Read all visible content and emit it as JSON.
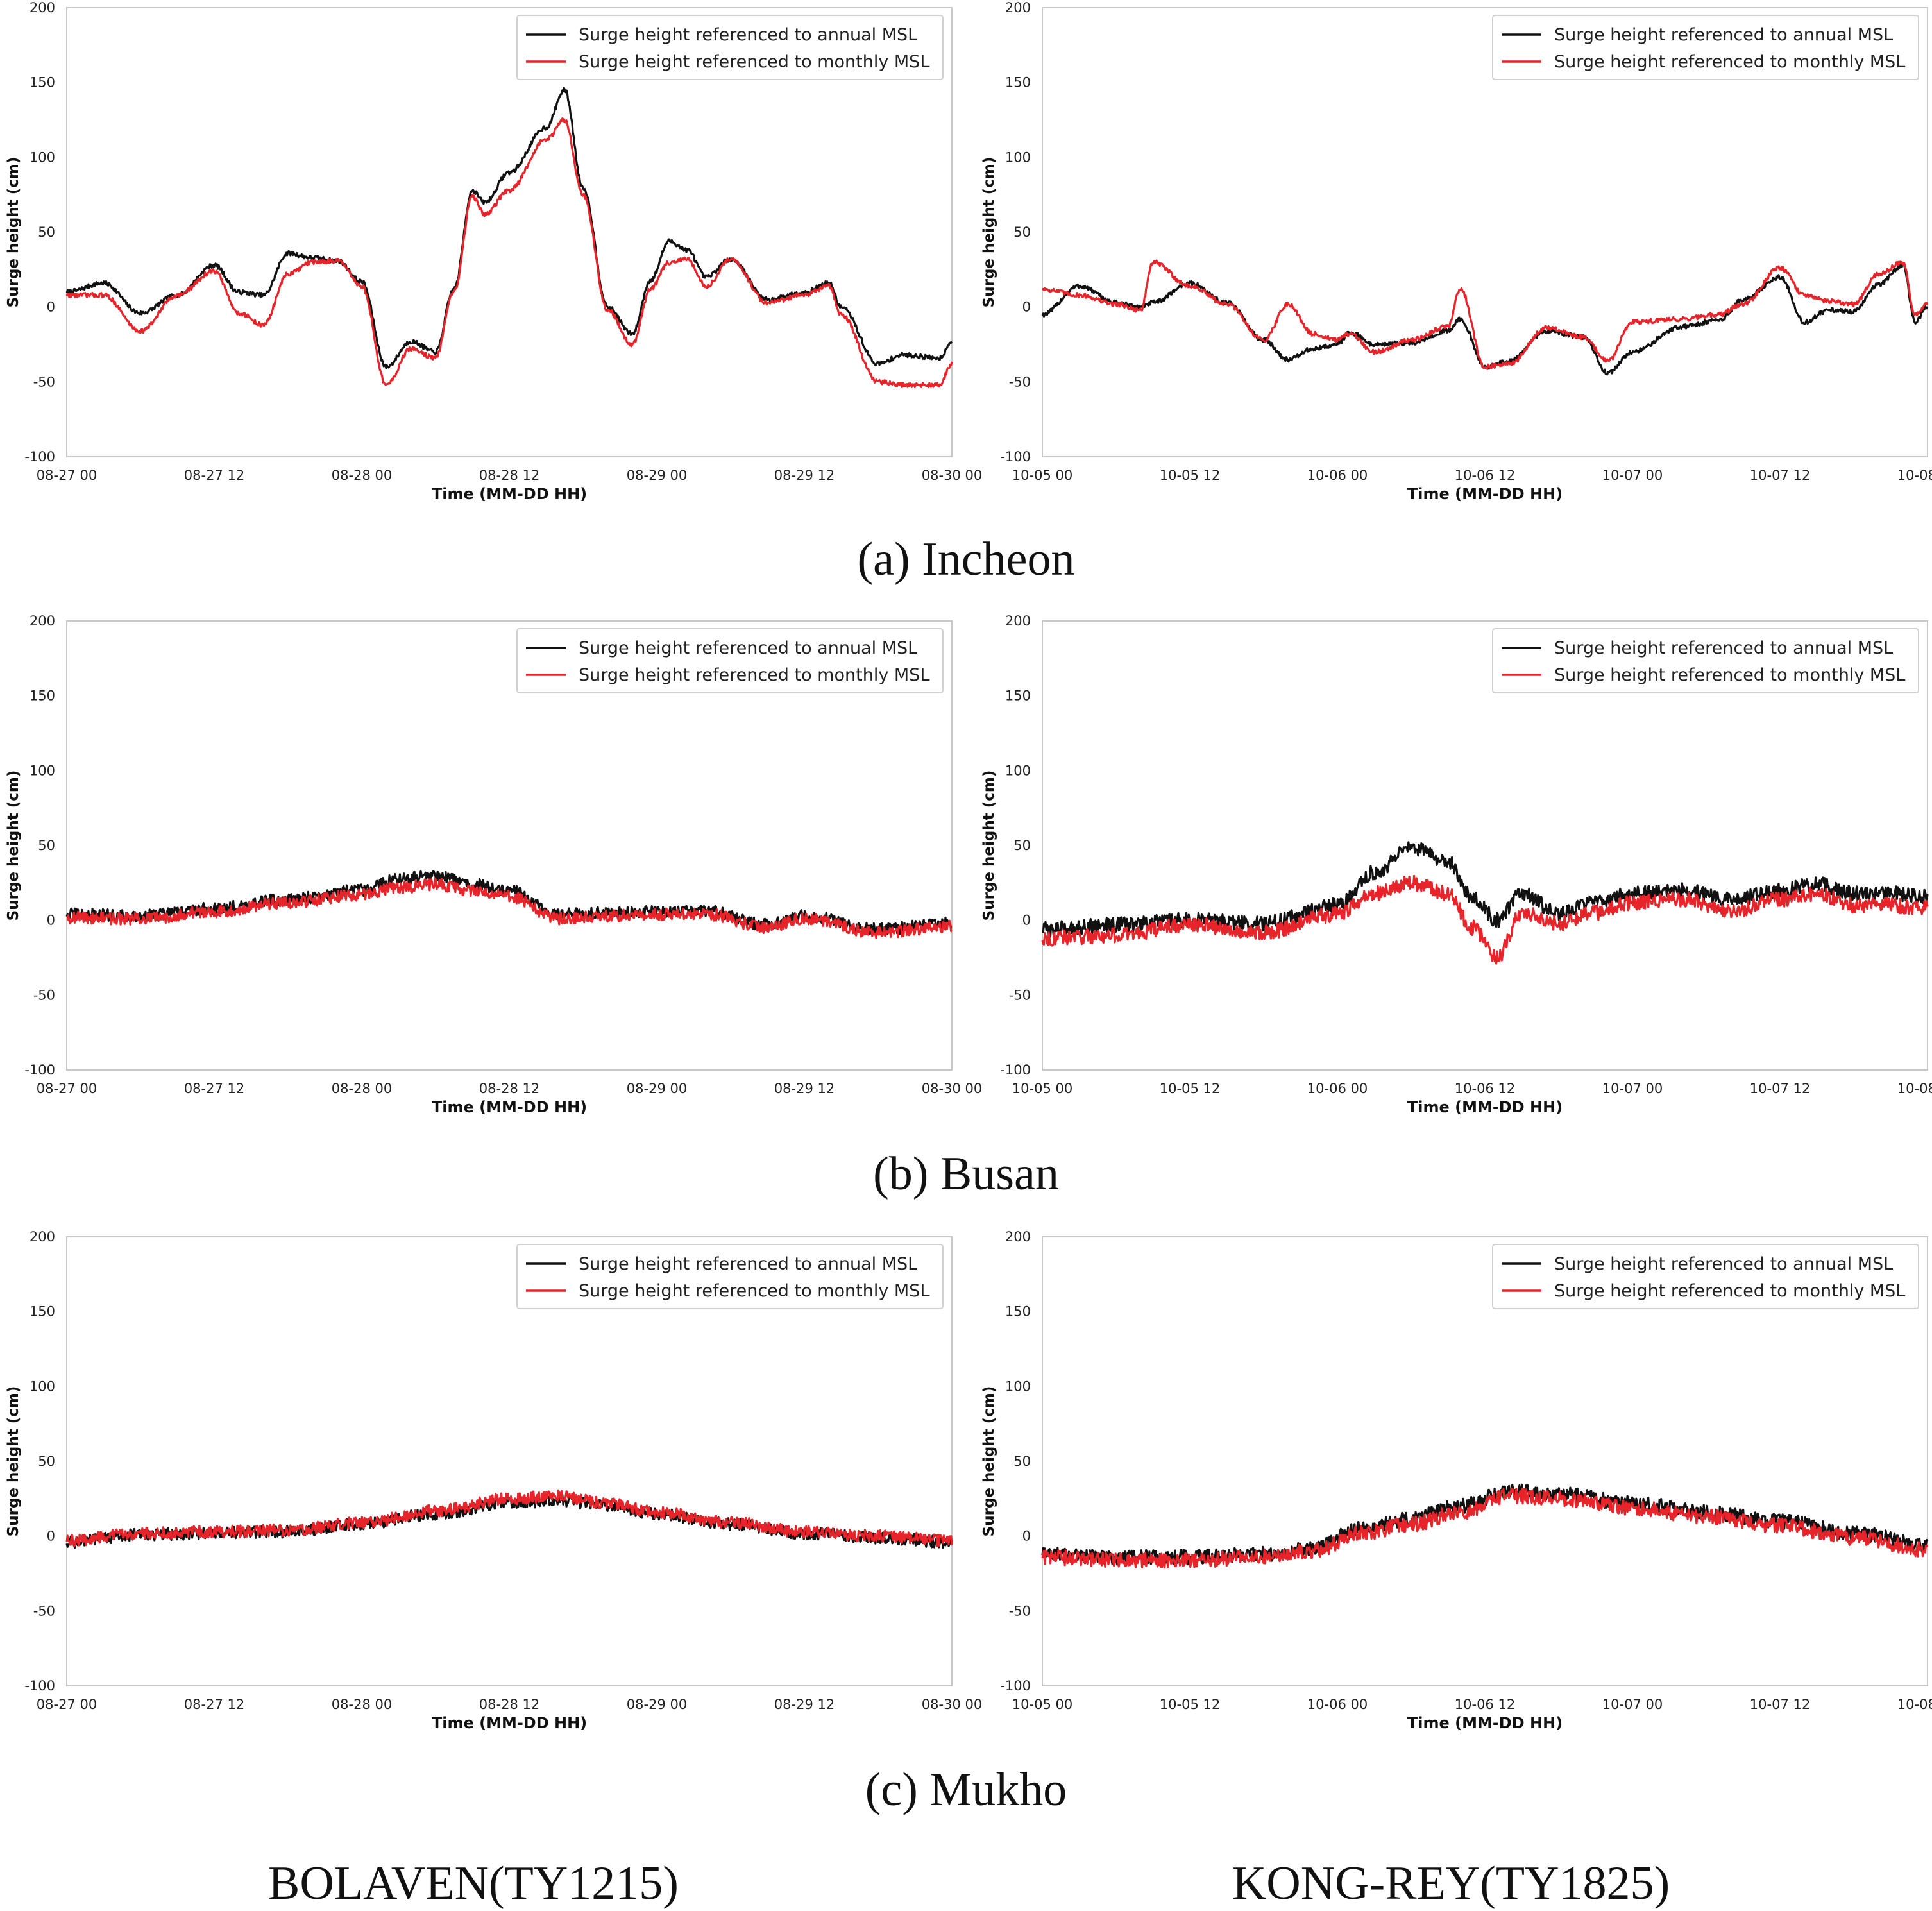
{
  "figure": {
    "row_captions": [
      "(a)  Incheon",
      "(b)  Busan",
      "(c)  Mukho"
    ],
    "column_labels": [
      "BOLAVEN(TY1215)",
      "KONG-REY(TY1825)"
    ]
  },
  "chart_data": [
    {
      "id": "incheon-bolaven",
      "type": "line",
      "xlabel": "Time (MM-DD HH)",
      "ylabel": "Surge height (cm)",
      "xlim": [
        0,
        72
      ],
      "ylim": [
        -100,
        200
      ],
      "xticks": [
        0,
        12,
        24,
        36,
        48,
        60,
        72
      ],
      "xticklabels": [
        "08-27 00",
        "08-27 12",
        "08-28 00",
        "08-28 12",
        "08-29 00",
        "08-29 12",
        "08-30 00"
      ],
      "yticks": [
        -100,
        -50,
        0,
        50,
        100,
        150,
        200
      ],
      "legend_position": "top-right",
      "grid": false,
      "noise_amplitude": 1.5,
      "series": [
        {
          "name": "Surge height referenced to annual MSL",
          "color": "#111111",
          "x": [
            0,
            3,
            6,
            9,
            12,
            14,
            16,
            18,
            20,
            22,
            24,
            26,
            28,
            30,
            31.5,
            33,
            34,
            36,
            39,
            40.5,
            42,
            44,
            46,
            47.5,
            49,
            50.5,
            52,
            54,
            57,
            60,
            62,
            63,
            66,
            68,
            71,
            72
          ],
          "y": [
            10,
            16,
            -4,
            8,
            28,
            10,
            8,
            36,
            33,
            31,
            17,
            -40,
            -23,
            -30,
            12,
            78,
            70,
            90,
            120,
            145,
            80,
            0,
            -18,
            18,
            44,
            38,
            20,
            32,
            5,
            10,
            16,
            0,
            -38,
            -32,
            -34,
            -23
          ]
        },
        {
          "name": "Surge height referenced to monthly MSL",
          "color": "#e8242b",
          "x": [
            0,
            3,
            6,
            9,
            12,
            14,
            16,
            18,
            20,
            22,
            24,
            26,
            28,
            30,
            31.5,
            33,
            34,
            36,
            39,
            40.5,
            42,
            44,
            46,
            47.5,
            49,
            50.5,
            52,
            54,
            57,
            60,
            62,
            63,
            66,
            68,
            71,
            72
          ],
          "y": [
            8,
            8,
            -16,
            8,
            24,
            -4,
            -12,
            22,
            30,
            31,
            14,
            -52,
            -28,
            -34,
            10,
            74,
            62,
            78,
            112,
            125,
            75,
            -2,
            -25,
            12,
            30,
            32,
            14,
            32,
            3,
            8,
            14,
            -5,
            -50,
            -52,
            -52,
            -38
          ]
        }
      ]
    },
    {
      "id": "incheon-kongrey",
      "type": "line",
      "xlabel": "Time (MM-DD HH)",
      "ylabel": "Surge height (cm)",
      "xlim": [
        0,
        72
      ],
      "ylim": [
        -100,
        200
      ],
      "xticks": [
        0,
        12,
        24,
        36,
        48,
        60,
        72
      ],
      "xticklabels": [
        "10-05 00",
        "10-05 12",
        "10-06 00",
        "10-06 12",
        "10-07 00",
        "10-07 12",
        "10-08 00"
      ],
      "yticks": [
        -100,
        -50,
        0,
        50,
        100,
        150,
        200
      ],
      "legend_position": "top-right",
      "grid": false,
      "noise_amplitude": 1.5,
      "series": [
        {
          "name": "Surge height referenced to annual MSL",
          "color": "#111111",
          "x": [
            0,
            3,
            6,
            8,
            9,
            12,
            15,
            18,
            20,
            22,
            24,
            25,
            27,
            30,
            33,
            34,
            36,
            38,
            41,
            44,
            46,
            48,
            52,
            55,
            57,
            60,
            62,
            64,
            66,
            68,
            70,
            71,
            72
          ],
          "y": [
            -5,
            14,
            3,
            0,
            3,
            16,
            3,
            -22,
            -35,
            -28,
            -25,
            -17,
            -25,
            -24,
            -16,
            -8,
            -40,
            -36,
            -16,
            -20,
            -44,
            -30,
            -13,
            -9,
            5,
            20,
            -10,
            -2,
            -3,
            15,
            28,
            -10,
            0
          ]
        },
        {
          "name": "Surge height referenced to monthly MSL",
          "color": "#e8242b",
          "x": [
            0,
            3,
            6,
            8,
            9,
            12,
            15,
            18,
            20,
            22,
            24,
            25,
            27,
            30,
            33,
            34,
            36,
            38,
            41,
            44,
            46,
            48,
            52,
            55,
            57,
            60,
            62,
            64,
            66,
            68,
            70,
            71,
            72
          ],
          "y": [
            12,
            8,
            2,
            -2,
            30,
            14,
            2,
            -22,
            2,
            -18,
            -22,
            -18,
            -30,
            -22,
            -13,
            12,
            -40,
            -38,
            -14,
            -20,
            -36,
            -10,
            -8,
            -5,
            2,
            26,
            8,
            4,
            2,
            22,
            30,
            -5,
            3
          ]
        }
      ]
    },
    {
      "id": "busan-bolaven",
      "type": "line",
      "xlabel": "Time (MM-DD HH)",
      "ylabel": "Surge height (cm)",
      "xlim": [
        0,
        72
      ],
      "ylim": [
        -100,
        200
      ],
      "xticks": [
        0,
        12,
        24,
        36,
        48,
        60,
        72
      ],
      "xticklabels": [
        "08-27 00",
        "08-27 12",
        "08-28 00",
        "08-28 12",
        "08-29 00",
        "08-29 12",
        "08-30 00"
      ],
      "yticks": [
        -100,
        -50,
        0,
        50,
        100,
        150,
        200
      ],
      "legend_position": "top-right",
      "grid": false,
      "noise_amplitude": 4,
      "series": [
        {
          "name": "Surge height referenced to annual MSL",
          "color": "#111111",
          "x": [
            0,
            6,
            12,
            18,
            24,
            27,
            30,
            33,
            36,
            40,
            44,
            48,
            52,
            57,
            60,
            66,
            72
          ],
          "y": [
            4,
            3,
            8,
            14,
            20,
            28,
            30,
            24,
            20,
            4,
            5,
            6,
            6,
            -3,
            3,
            -6,
            -2
          ]
        },
        {
          "name": "Surge height referenced to monthly MSL",
          "color": "#e8242b",
          "x": [
            0,
            6,
            12,
            18,
            24,
            27,
            30,
            33,
            36,
            40,
            44,
            48,
            52,
            57,
            60,
            66,
            72
          ],
          "y": [
            2,
            1,
            6,
            12,
            17,
            22,
            24,
            20,
            16,
            1,
            3,
            4,
            4,
            -5,
            1,
            -8,
            -4
          ]
        }
      ]
    },
    {
      "id": "busan-kongrey",
      "type": "line",
      "xlabel": "Time (MM-DD HH)",
      "ylabel": "Surge height (cm)",
      "xlim": [
        0,
        72
      ],
      "ylim": [
        -100,
        200
      ],
      "xticks": [
        0,
        12,
        24,
        36,
        48,
        60,
        72
      ],
      "xticklabels": [
        "10-05 00",
        "10-05 12",
        "10-06 00",
        "10-06 12",
        "10-07 00",
        "10-07 12",
        "10-08 00"
      ],
      "yticks": [
        -100,
        -50,
        0,
        50,
        100,
        150,
        200
      ],
      "legend_position": "top-right",
      "grid": false,
      "noise_amplitude": 5,
      "series": [
        {
          "name": "Surge height referenced to annual MSL",
          "color": "#111111",
          "x": [
            0,
            6,
            12,
            18,
            24,
            27,
            30,
            33,
            35,
            37,
            39,
            42,
            45,
            48,
            52,
            56,
            60,
            63,
            66,
            69,
            72
          ],
          "y": [
            -6,
            -3,
            0,
            -2,
            10,
            32,
            48,
            40,
            15,
            0,
            18,
            5,
            12,
            18,
            20,
            14,
            20,
            24,
            18,
            18,
            16
          ]
        },
        {
          "name": "Surge height referenced to monthly MSL",
          "color": "#e8242b",
          "x": [
            0,
            6,
            12,
            18,
            24,
            27,
            30,
            33,
            35,
            37,
            39,
            42,
            45,
            48,
            52,
            56,
            60,
            63,
            66,
            69,
            72
          ],
          "y": [
            -12,
            -10,
            -3,
            -8,
            4,
            18,
            25,
            18,
            -5,
            -25,
            5,
            -2,
            5,
            12,
            14,
            6,
            14,
            18,
            10,
            10,
            8
          ]
        }
      ]
    },
    {
      "id": "mukho-bolaven",
      "type": "line",
      "xlabel": "Time (MM-DD HH)",
      "ylabel": "Surge height (cm)",
      "xlim": [
        0,
        72
      ],
      "ylim": [
        -100,
        200
      ],
      "xticks": [
        0,
        12,
        24,
        36,
        48,
        60,
        72
      ],
      "xticklabels": [
        "08-27 00",
        "08-27 12",
        "08-28 00",
        "08-28 12",
        "08-29 00",
        "08-29 12",
        "08-30 00"
      ],
      "yticks": [
        -100,
        -50,
        0,
        50,
        100,
        150,
        200
      ],
      "legend_position": "top-right",
      "grid": false,
      "noise_amplitude": 4,
      "series": [
        {
          "name": "Surge height referenced to annual MSL",
          "color": "#111111",
          "x": [
            0,
            6,
            12,
            18,
            24,
            30,
            36,
            40,
            44,
            48,
            54,
            60,
            66,
            72
          ],
          "y": [
            -4,
            1,
            2,
            3,
            8,
            15,
            22,
            24,
            20,
            15,
            8,
            2,
            -1,
            -4
          ]
        },
        {
          "name": "Surge height referenced to monthly MSL",
          "color": "#e8242b",
          "x": [
            0,
            6,
            12,
            18,
            24,
            30,
            36,
            40,
            44,
            48,
            54,
            60,
            66,
            72
          ],
          "y": [
            -3,
            2,
            3,
            4,
            9,
            17,
            25,
            27,
            22,
            16,
            9,
            3,
            0,
            -3
          ]
        }
      ]
    },
    {
      "id": "mukho-kongrey",
      "type": "line",
      "xlabel": "Time (MM-DD HH)",
      "ylabel": "Surge height (cm)",
      "xlim": [
        0,
        72
      ],
      "ylim": [
        -100,
        200
      ],
      "xticks": [
        0,
        12,
        24,
        36,
        48,
        60,
        72
      ],
      "xticklabels": [
        "10-05 00",
        "10-05 12",
        "10-06 00",
        "10-06 12",
        "10-07 00",
        "10-07 12",
        "10-08 00"
      ],
      "yticks": [
        -100,
        -50,
        0,
        50,
        100,
        150,
        200
      ],
      "legend_position": "top-right",
      "grid": false,
      "noise_amplitude": 5,
      "series": [
        {
          "name": "Surge height referenced to annual MSL",
          "color": "#111111",
          "x": [
            0,
            6,
            12,
            18,
            22,
            26,
            30,
            34,
            38,
            42,
            48,
            54,
            60,
            66,
            72
          ],
          "y": [
            -12,
            -14,
            -14,
            -12,
            -8,
            5,
            12,
            20,
            30,
            28,
            22,
            16,
            10,
            2,
            -6
          ]
        },
        {
          "name": "Surge height referenced to monthly MSL",
          "color": "#e8242b",
          "x": [
            0,
            6,
            12,
            18,
            22,
            26,
            30,
            34,
            38,
            42,
            48,
            54,
            60,
            66,
            72
          ],
          "y": [
            -14,
            -16,
            -16,
            -14,
            -10,
            2,
            8,
            16,
            27,
            25,
            19,
            13,
            7,
            -1,
            -9
          ]
        }
      ]
    }
  ]
}
